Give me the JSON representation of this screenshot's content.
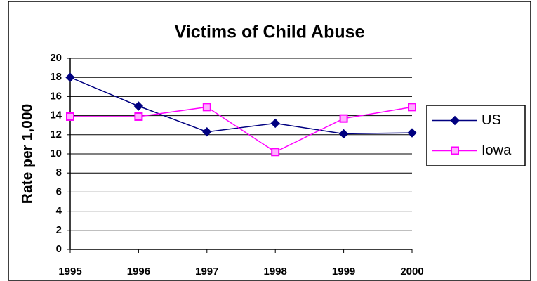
{
  "chart_data": {
    "type": "line",
    "title": "Victims of Child Abuse",
    "ylabel": "Rate per 1,000",
    "categories": [
      "1995",
      "1996",
      "1997",
      "1998",
      "1999",
      "2000"
    ],
    "series": [
      {
        "name": "US",
        "color": "#000080",
        "marker": "diamond",
        "values": [
          18.0,
          15.0,
          12.3,
          13.2,
          12.1,
          12.2
        ]
      },
      {
        "name": "Iowa",
        "color": "#ff00ff",
        "marker": "square",
        "values": [
          13.9,
          13.9,
          14.9,
          10.2,
          13.7,
          14.9
        ]
      }
    ],
    "ylim": [
      0,
      20
    ],
    "yticks": [
      0,
      2,
      4,
      6,
      8,
      10,
      12,
      14,
      16,
      18,
      20
    ],
    "grid": true,
    "legend": "right"
  }
}
